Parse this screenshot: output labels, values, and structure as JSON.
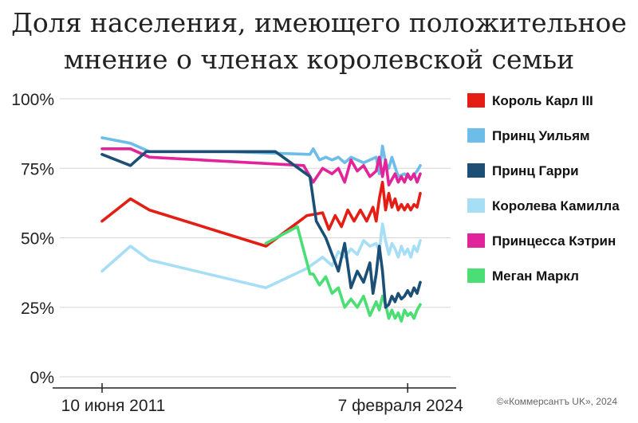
{
  "title_line1": "Доля населения, имеющего положительное",
  "title_line2": "мнение о членах королевской семьи",
  "source": "©«Коммерсантъ UK», 2024",
  "chart_data": {
    "type": "line",
    "title": "Доля населения, имеющего положительное мнение о членах королевской семьи",
    "ylim": [
      0,
      100
    ],
    "yticks": [
      "0%",
      "25%",
      "50%",
      "75%",
      "100%"
    ],
    "ytick_values": [
      0,
      25,
      50,
      75,
      100
    ],
    "xticks": [
      "10 июня 2011",
      "7 февраля 2024"
    ],
    "xlim": [
      0,
      100
    ],
    "xtick_positions": [
      0,
      97
    ],
    "grid": "horizontal",
    "legend_position": "right",
    "series": [
      {
        "name": "Король Карл III",
        "color": "#e41e14",
        "x": [
          0,
          9,
          15,
          52,
          65,
          70,
          72,
          74,
          76,
          78,
          80,
          82,
          84,
          86,
          87,
          88,
          89,
          90,
          91,
          92,
          93,
          94,
          95,
          96,
          97,
          98,
          99,
          100,
          101
        ],
        "y": [
          56,
          64,
          60,
          47,
          58,
          59,
          53,
          58,
          54,
          60,
          56,
          60,
          56,
          61,
          56,
          64,
          70,
          60,
          66,
          61,
          64,
          60,
          62,
          60,
          62,
          60,
          62,
          61,
          66
        ]
      },
      {
        "name": "Принц Уильям",
        "color": "#6cbde8",
        "x": [
          0,
          9,
          15,
          40,
          66,
          67,
          69,
          71,
          73,
          75,
          77,
          79,
          81,
          83,
          85,
          87,
          88,
          89,
          90,
          91,
          92,
          94,
          96,
          98,
          100,
          101
        ],
        "y": [
          86,
          84,
          81,
          81,
          80,
          82,
          78,
          79,
          78,
          79,
          77,
          79,
          78,
          77,
          78,
          79,
          73,
          83,
          77,
          75,
          79,
          72,
          73,
          71,
          74,
          76
        ]
      },
      {
        "name": "Принц Гарри",
        "color": "#1b4f75",
        "x": [
          0,
          9,
          14,
          55,
          66,
          68,
          71,
          73,
          75,
          77,
          79,
          81,
          83,
          85,
          86,
          87,
          88,
          89,
          90,
          91,
          92,
          93,
          94,
          95,
          96,
          97,
          98,
          99,
          100,
          101
        ],
        "y": [
          80,
          76,
          81,
          81,
          72,
          56,
          50,
          44,
          38,
          48,
          32,
          38,
          34,
          41,
          30,
          37,
          47,
          38,
          25,
          26,
          29,
          27,
          30,
          28,
          29,
          31,
          29,
          32,
          30,
          34
        ]
      },
      {
        "name": "Королева Камилла",
        "color": "#a6def5",
        "x": [
          0,
          9,
          15,
          52,
          65,
          70,
          73,
          75,
          77,
          79,
          81,
          83,
          85,
          87,
          88,
          89,
          90,
          91,
          92,
          93,
          94,
          95,
          96,
          97,
          98,
          99,
          100,
          101
        ],
        "y": [
          38,
          47,
          42,
          32,
          39,
          43,
          40,
          45,
          43,
          46,
          44,
          49,
          47,
          48,
          45,
          55,
          49,
          44,
          48,
          46,
          43,
          47,
          44,
          46,
          43,
          47,
          45,
          49
        ]
      },
      {
        "name": "Принцесса Кэтрин",
        "color": "#e2249b",
        "x": [
          0,
          9,
          15,
          64,
          67,
          70,
          73,
          75,
          77,
          79,
          81,
          83,
          85,
          87,
          88,
          89,
          90,
          91,
          92,
          93,
          94,
          95,
          96,
          97,
          98,
          99,
          100,
          101
        ],
        "y": [
          82,
          82,
          79,
          76,
          70,
          75,
          73,
          75,
          70,
          78,
          74,
          76,
          72,
          74,
          79,
          72,
          78,
          69,
          71,
          73,
          70,
          72,
          70,
          73,
          71,
          73,
          70,
          73
        ]
      },
      {
        "name": "Меган Маркл",
        "color": "#4bde74",
        "x": [
          52,
          62,
          66,
          67,
          69,
          71,
          73,
          75,
          77,
          79,
          81,
          83,
          85,
          87,
          88,
          89,
          90,
          91,
          92,
          93,
          94,
          95,
          96,
          97,
          98,
          99,
          100,
          101
        ],
        "y": [
          48,
          54,
          37,
          37,
          33,
          36,
          30,
          32,
          25,
          28,
          25,
          29,
          22,
          27,
          24,
          29,
          26,
          21,
          24,
          21,
          23,
          20,
          24,
          22,
          23,
          21,
          24,
          26
        ]
      }
    ]
  }
}
